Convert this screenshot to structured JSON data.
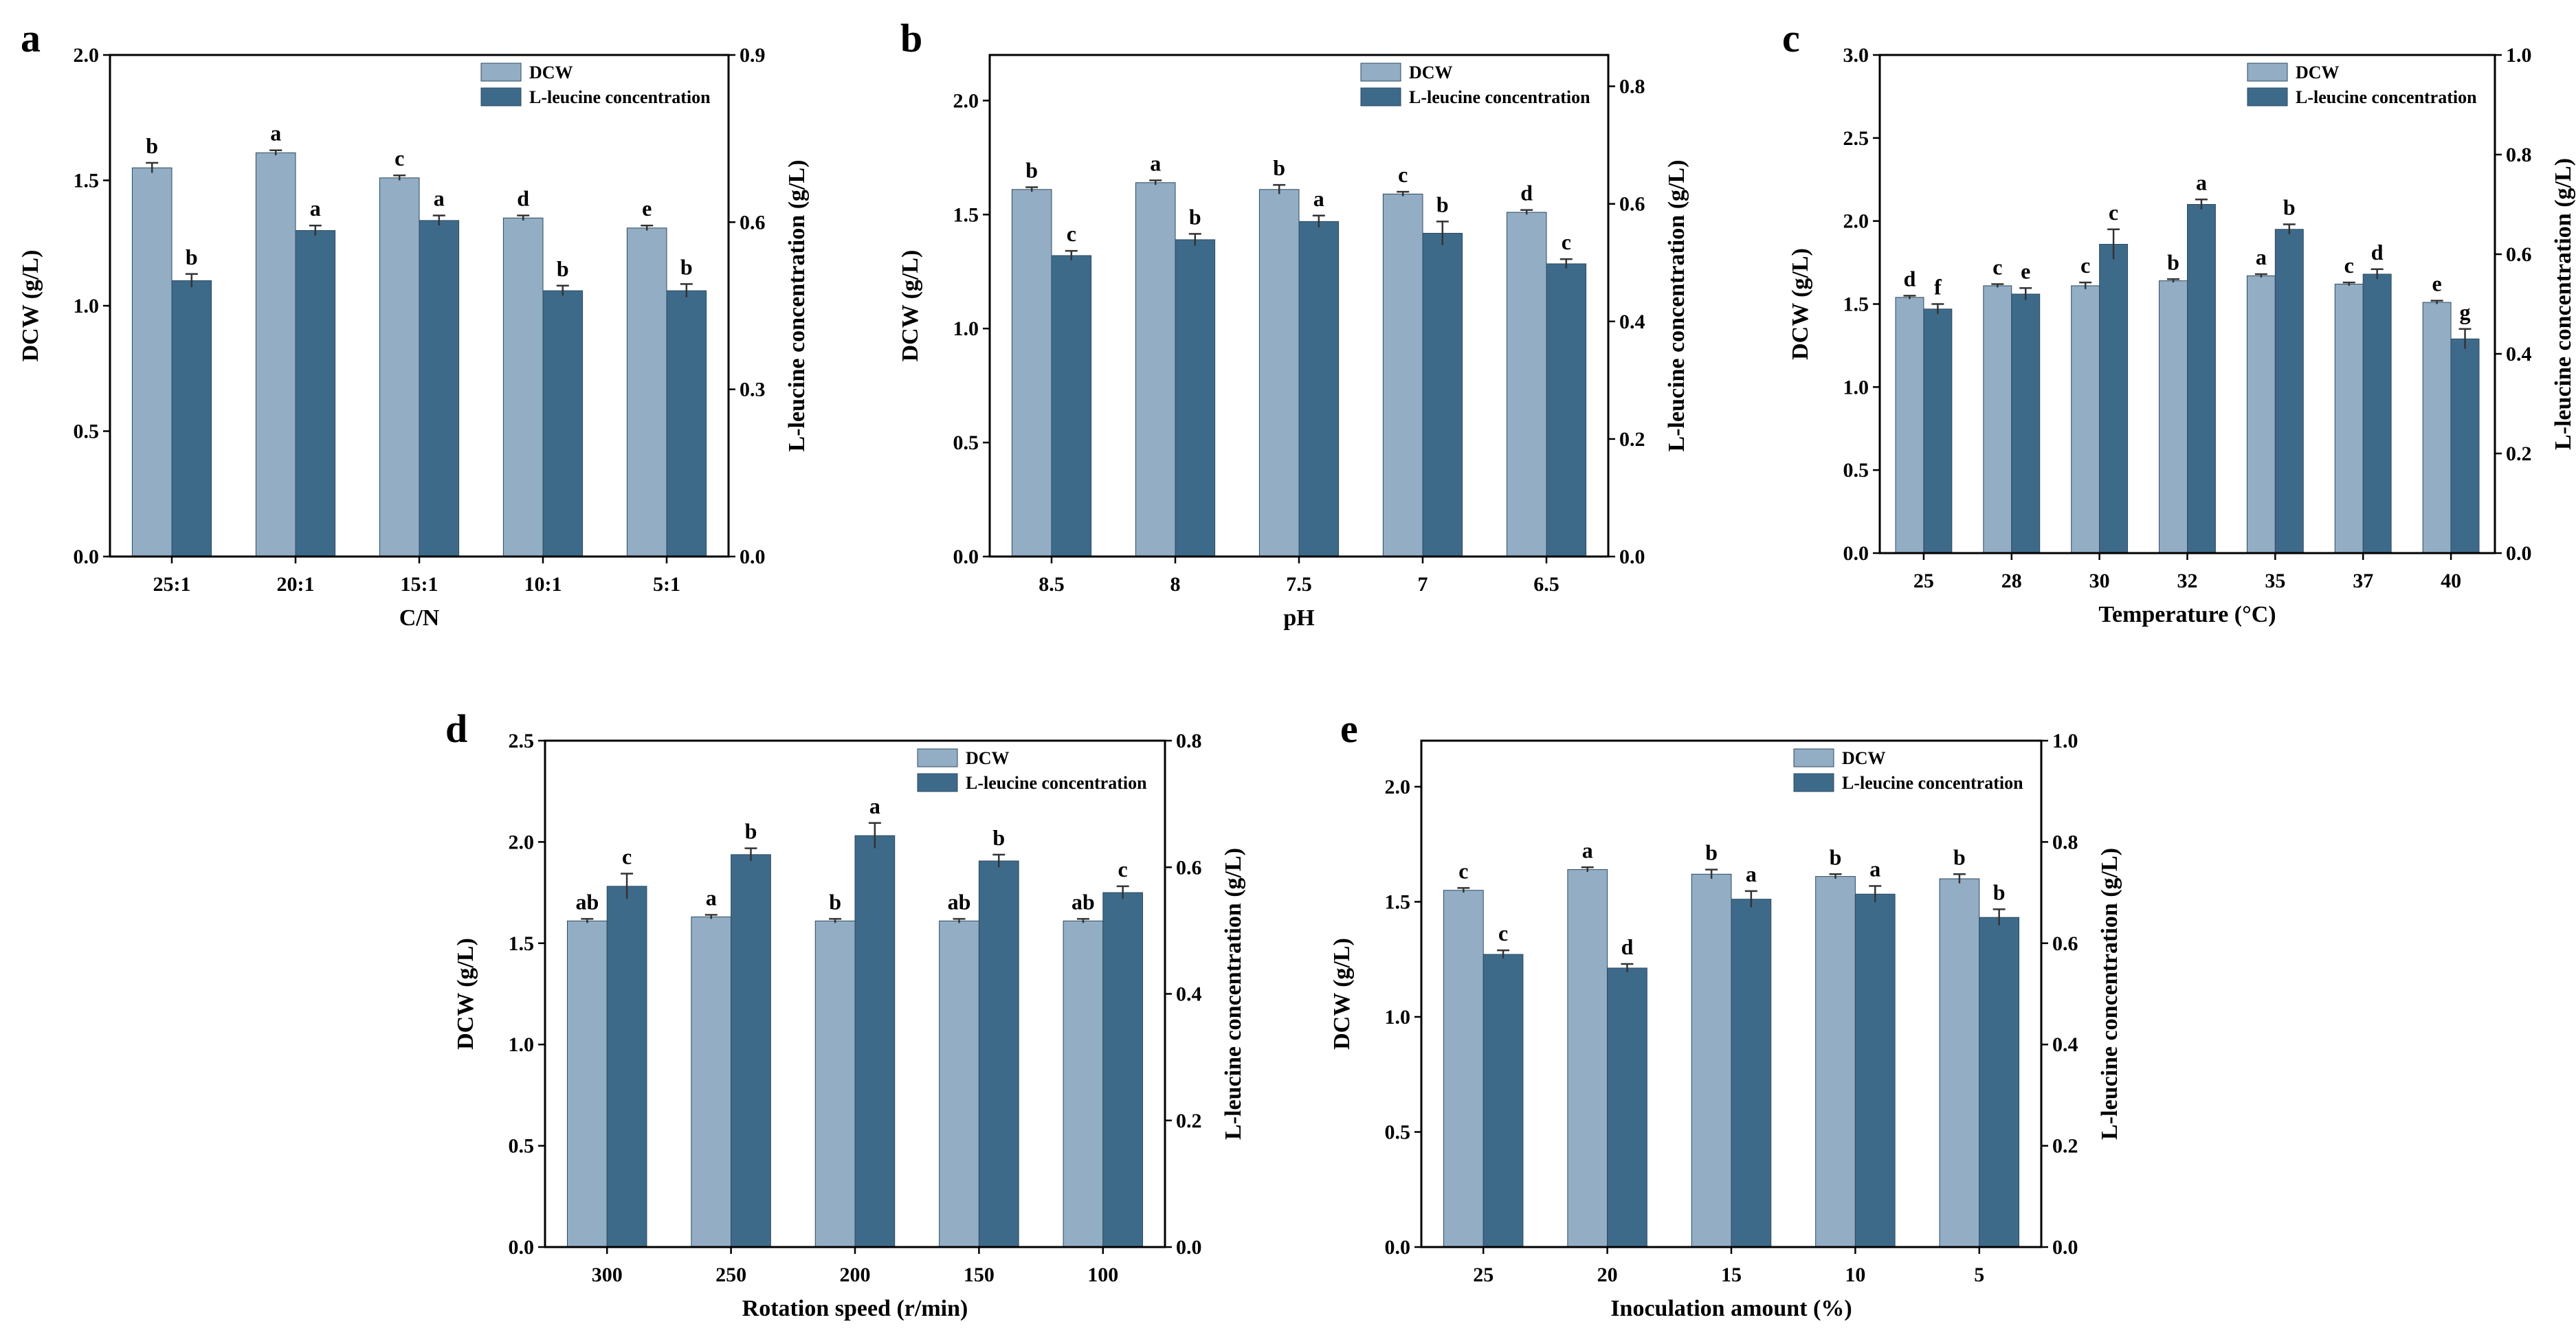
{
  "colors": {
    "dcw": "#93adc4",
    "leu": "#3e6a8a",
    "axis": "#000000",
    "errorbar": "#333333"
  },
  "legend_labels": {
    "dcw": "DCW",
    "leu": "L-leucine concentration"
  },
  "chart_data": [
    {
      "panel": "a",
      "type": "bar",
      "title": "",
      "xlabel": "C/N",
      "ylabel": "DCW (g/L)",
      "y2label": "L-leucine concentration (g/L)",
      "categories": [
        "25:1",
        "20:1",
        "15:1",
        "10:1",
        "5:1"
      ],
      "ylim": [
        0,
        2.0
      ],
      "yticks": [
        0.0,
        0.5,
        1.0,
        1.5,
        2.0
      ],
      "ytick_labels": [
        "0.0",
        "0.5",
        "1.0",
        "1.5",
        "2.0"
      ],
      "y2lim": [
        0,
        0.9
      ],
      "y2ticks": [
        0.0,
        0.3,
        0.6,
        0.9
      ],
      "y2tick_labels": [
        "0.0",
        "0.3",
        "0.6",
        "0.9"
      ],
      "legend": "top-right",
      "series": [
        {
          "name": "DCW",
          "axis": "left",
          "values": [
            1.55,
            1.61,
            1.51,
            1.35,
            1.31
          ],
          "errors": [
            0.02,
            0.01,
            0.01,
            0.01,
            0.01
          ],
          "letters": [
            "b",
            "a",
            "c",
            "d",
            "e"
          ]
        },
        {
          "name": "L-leucine concentration",
          "axis": "right",
          "values": [
            0.495,
            0.585,
            0.603,
            0.477,
            0.477
          ],
          "errors": [
            0.012,
            0.009,
            0.009,
            0.009,
            0.012
          ],
          "letters": [
            "b",
            "a",
            "a",
            "b",
            "b"
          ]
        }
      ]
    },
    {
      "panel": "b",
      "type": "bar",
      "title": "",
      "xlabel": "pH",
      "ylabel": "DCW (g/L)",
      "y2label": "L-leucine concentration (g/L)",
      "categories": [
        "8.5",
        "8",
        "7.5",
        "7",
        "6.5"
      ],
      "ylim": [
        0,
        2.2
      ],
      "yticks": [
        0.0,
        0.5,
        1.0,
        1.5,
        2.0
      ],
      "ytick_labels": [
        "0.0",
        "0.5",
        "1.0",
        "1.5",
        "2.0"
      ],
      "y2lim": [
        0,
        0.8533
      ],
      "y2ticks": [
        0.0,
        0.2,
        0.4,
        0.6,
        0.8
      ],
      "y2tick_labels": [
        "0.0",
        "0.2",
        "0.4",
        "0.6",
        "0.8"
      ],
      "legend": "top-right",
      "series": [
        {
          "name": "DCW",
          "axis": "left",
          "values": [
            1.61,
            1.64,
            1.61,
            1.59,
            1.51
          ],
          "errors": [
            0.01,
            0.01,
            0.02,
            0.01,
            0.01
          ],
          "letters": [
            "b",
            "a",
            "b",
            "c",
            "d"
          ]
        },
        {
          "name": "L-leucine concentration",
          "axis": "right",
          "values": [
            0.512,
            0.539,
            0.57,
            0.55,
            0.498
          ],
          "errors": [
            0.008,
            0.01,
            0.01,
            0.02,
            0.008
          ],
          "letters": [
            "c",
            "b",
            "a",
            "b",
            "c"
          ]
        }
      ]
    },
    {
      "panel": "c",
      "type": "bar",
      "title": "",
      "xlabel": "Temperature (°C)",
      "ylabel": "DCW (g/L)",
      "y2label": "L-leucine concentration (g/L)",
      "categories": [
        "25",
        "28",
        "30",
        "32",
        "35",
        "37",
        "40"
      ],
      "ylim": [
        0,
        3.0
      ],
      "yticks": [
        0.0,
        0.5,
        1.0,
        1.5,
        2.0,
        2.5,
        3.0
      ],
      "ytick_labels": [
        "0.0",
        "0.5",
        "1.0",
        "1.5",
        "2.0",
        "2.5",
        "3.0"
      ],
      "y2lim": [
        0,
        1.0
      ],
      "y2ticks": [
        0.0,
        0.2,
        0.4,
        0.6,
        0.8,
        1.0
      ],
      "y2tick_labels": [
        "0.0",
        "0.2",
        "0.4",
        "0.6",
        "0.8",
        "1.0"
      ],
      "legend": "top-right",
      "series": [
        {
          "name": "DCW",
          "axis": "left",
          "values": [
            1.54,
            1.61,
            1.61,
            1.64,
            1.67,
            1.62,
            1.51
          ],
          "errors": [
            0.01,
            0.01,
            0.02,
            0.01,
            0.01,
            0.01,
            0.01
          ],
          "letters": [
            "d",
            "c",
            "c",
            "b",
            "a",
            "c",
            "e"
          ]
        },
        {
          "name": "L-leucine concentration",
          "axis": "right",
          "values": [
            0.49,
            0.52,
            0.62,
            0.7,
            0.65,
            0.56,
            0.43
          ],
          "errors": [
            0.01,
            0.012,
            0.03,
            0.01,
            0.01,
            0.01,
            0.02
          ],
          "letters": [
            "f",
            "e",
            "c",
            "a",
            "b",
            "d",
            "g"
          ]
        }
      ]
    },
    {
      "panel": "d",
      "type": "bar",
      "title": "",
      "xlabel": "Rotation speed (r/min)",
      "ylabel": "DCW (g/L)",
      "y2label": "L-leucine concentration (g/L)",
      "categories": [
        "300",
        "250",
        "200",
        "150",
        "100"
      ],
      "ylim": [
        0,
        2.5
      ],
      "yticks": [
        0.0,
        0.5,
        1.0,
        1.5,
        2.0,
        2.5
      ],
      "ytick_labels": [
        "0.0",
        "0.5",
        "1.0",
        "1.5",
        "2.0",
        "2.5"
      ],
      "y2lim": [
        0,
        0.8
      ],
      "y2ticks": [
        0.0,
        0.2,
        0.4,
        0.6,
        0.8
      ],
      "y2tick_labels": [
        "0.0",
        "0.2",
        "0.4",
        "0.6",
        "0.8"
      ],
      "legend": "top-right",
      "series": [
        {
          "name": "DCW",
          "axis": "left",
          "values": [
            1.61,
            1.63,
            1.61,
            1.61,
            1.61
          ],
          "errors": [
            0.01,
            0.01,
            0.01,
            0.01,
            0.01
          ],
          "letters": [
            "ab",
            "a",
            "b",
            "ab",
            "ab"
          ]
        },
        {
          "name": "L-leucine concentration",
          "axis": "right",
          "values": [
            0.57,
            0.62,
            0.65,
            0.61,
            0.56
          ],
          "errors": [
            0.02,
            0.01,
            0.02,
            0.01,
            0.01
          ],
          "letters": [
            "c",
            "b",
            "a",
            "b",
            "c"
          ]
        }
      ]
    },
    {
      "panel": "e",
      "type": "bar",
      "title": "",
      "xlabel": "Inoculation amount (%)",
      "ylabel": "DCW (g/L)",
      "y2label": "L-leucine concentration (g/L)",
      "categories": [
        "25",
        "20",
        "15",
        "10",
        "5"
      ],
      "ylim": [
        0,
        2.2
      ],
      "yticks": [
        0.0,
        0.5,
        1.0,
        1.5,
        2.0
      ],
      "ytick_labels": [
        "0.0",
        "0.5",
        "1.0",
        "1.5",
        "2.0"
      ],
      "y2lim": [
        0,
        1.0
      ],
      "y2ticks": [
        0.0,
        0.2,
        0.4,
        0.6,
        0.8,
        1.0
      ],
      "y2tick_labels": [
        "0.0",
        "0.2",
        "0.4",
        "0.6",
        "0.8",
        "1.0"
      ],
      "legend": "top-right",
      "series": [
        {
          "name": "DCW",
          "axis": "left",
          "values": [
            1.55,
            1.64,
            1.62,
            1.61,
            1.6
          ],
          "errors": [
            0.01,
            0.01,
            0.02,
            0.01,
            0.02
          ],
          "letters": [
            "c",
            "a",
            "b",
            "b",
            "b"
          ]
        },
        {
          "name": "L-leucine concentration",
          "axis": "right",
          "values": [
            0.578,
            0.551,
            0.687,
            0.697,
            0.651
          ],
          "errors": [
            0.008,
            0.008,
            0.016,
            0.016,
            0.016
          ],
          "letters": [
            "c",
            "d",
            "a",
            "a",
            "b"
          ]
        }
      ]
    }
  ]
}
